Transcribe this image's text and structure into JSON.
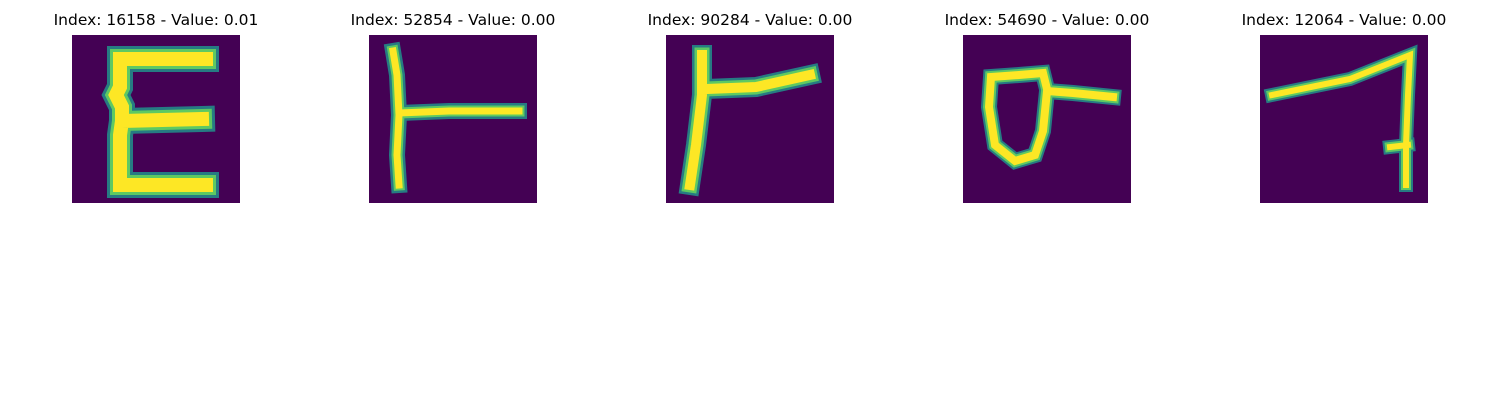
{
  "colors": {
    "background": "#440154",
    "halo": "#21918c",
    "mid": "#5ec962",
    "stroke": "#fde725"
  },
  "panels": [
    {
      "title": "Index: 16158 - Value: 0.01",
      "glyph": "E-shape"
    },
    {
      "title": "Index: 52854 - Value: 0.00",
      "glyph": "T-shape"
    },
    {
      "title": "Index: 90284 - Value: 0.00",
      "glyph": "Gamma-shape"
    },
    {
      "title": "Index: 54690 - Value: 0.00",
      "glyph": "sigma-shape"
    },
    {
      "title": "Index: 12064 - Value: 0.00",
      "glyph": "seven-shape"
    }
  ]
}
